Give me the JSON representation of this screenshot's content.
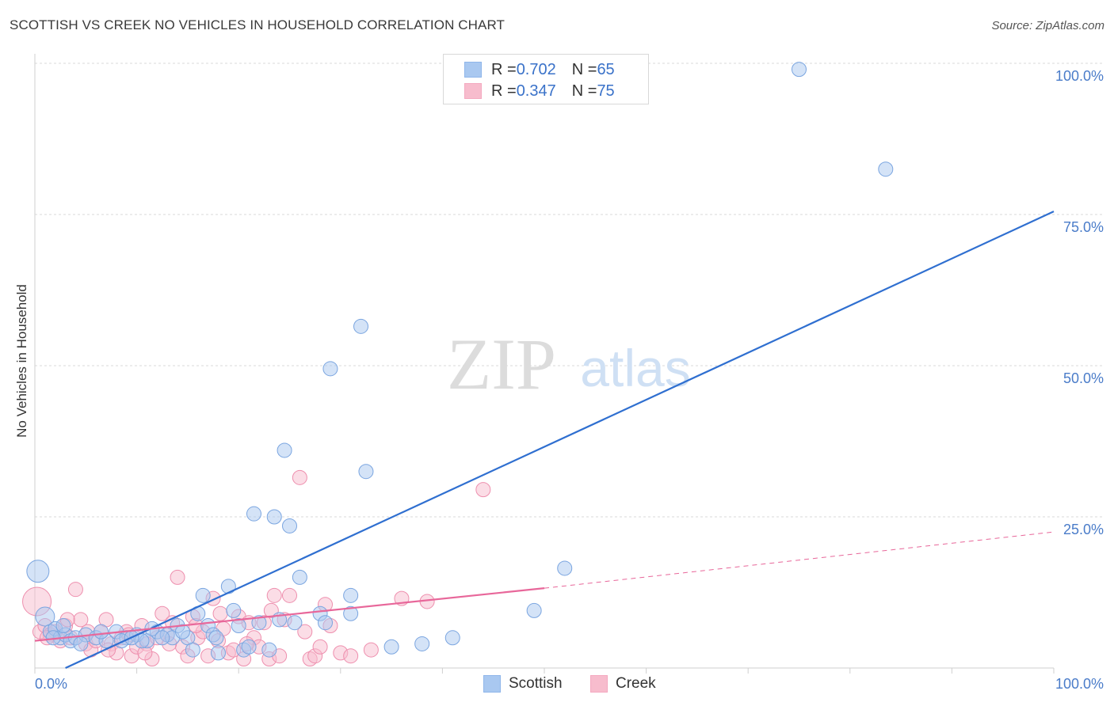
{
  "header": {
    "title": "SCOTTISH VS CREEK NO VEHICLES IN HOUSEHOLD CORRELATION CHART",
    "source": "Source: ZipAtlas.com"
  },
  "watermark": {
    "zip": "ZIP",
    "atlas": "atlas"
  },
  "legend": {
    "rows": [
      {
        "r_label": "R = ",
        "r_value": "0.702",
        "n_label": "N = ",
        "n_value": "65",
        "color": "#8fb6ea"
      },
      {
        "r_label": "R = ",
        "r_value": "0.347",
        "n_label": "N = ",
        "n_value": "75",
        "color": "#f4a9c0"
      }
    ]
  },
  "bottom_legend": [
    {
      "label": "Scottish",
      "color": "#8fb6ea"
    },
    {
      "label": "Creek",
      "color": "#f4a9c0"
    }
  ],
  "colors": {
    "scottish_fill": "#a9c8f0",
    "scottish_stroke": "#7aa5e0",
    "scottish_line": "#2f6fd0",
    "creek_fill": "#f7bccd",
    "creek_stroke": "#ee8fae",
    "creek_line": "#e8679a",
    "axis_text": "#4a7cc9",
    "grid": "#d9d9d9"
  },
  "chart_data": {
    "type": "scatter",
    "title": "SCOTTISH VS CREEK NO VEHICLES IN HOUSEHOLD CORRELATION CHART",
    "xlabel": "",
    "ylabel": "No Vehicles in Household",
    "xlim": [
      0,
      100
    ],
    "ylim": [
      0,
      100
    ],
    "x_tick_labels": [
      {
        "value": 0,
        "label": "0.0%"
      },
      {
        "value": 100,
        "label": "100.0%"
      }
    ],
    "y_tick_labels": [
      {
        "value": 25,
        "label": "25.0%"
      },
      {
        "value": 50,
        "label": "50.0%"
      },
      {
        "value": 75,
        "label": "75.0%"
      },
      {
        "value": 100,
        "label": "100.0%"
      }
    ],
    "series": [
      {
        "name": "Scottish",
        "R": 0.702,
        "N": 65,
        "trend": {
          "x0": 3,
          "y0": 0,
          "x1": 100,
          "y1": 75.5
        },
        "points": [
          [
            0.3,
            16,
            14
          ],
          [
            1,
            8.5,
            12
          ],
          [
            1.5,
            6,
            9
          ],
          [
            2,
            6.5,
            9
          ],
          [
            2.5,
            5,
            9
          ],
          [
            3,
            5.5,
            9
          ],
          [
            3.5,
            4.5,
            9
          ],
          [
            4,
            5,
            9
          ],
          [
            5,
            5.5,
            9
          ],
          [
            6,
            5,
            9
          ],
          [
            7,
            4.5,
            9
          ],
          [
            8,
            6,
            9
          ],
          [
            9,
            5,
            9
          ],
          [
            10,
            5.5,
            9
          ],
          [
            11,
            4.5,
            9
          ],
          [
            12,
            6,
            9
          ],
          [
            13,
            5.5,
            9
          ],
          [
            14,
            7,
            9
          ],
          [
            15,
            5,
            9
          ],
          [
            15.5,
            3,
            9
          ],
          [
            16,
            9,
            9
          ],
          [
            16.5,
            12,
            9
          ],
          [
            17,
            7,
            9
          ],
          [
            17.5,
            5.5,
            9
          ],
          [
            18,
            2.5,
            9
          ],
          [
            19,
            13.5,
            9
          ],
          [
            19.5,
            9.5,
            9
          ],
          [
            20,
            7,
            9
          ],
          [
            20.5,
            3,
            9
          ],
          [
            21,
            3.5,
            9
          ],
          [
            21.5,
            25.5,
            9
          ],
          [
            22,
            7.5,
            9
          ],
          [
            23,
            3,
            9
          ],
          [
            23.5,
            25,
            9
          ],
          [
            24,
            8,
            9
          ],
          [
            24.5,
            36,
            9
          ],
          [
            25,
            23.5,
            9
          ],
          [
            25.5,
            7.5,
            9
          ],
          [
            26,
            15,
            9
          ],
          [
            28,
            9,
            9
          ],
          [
            28.5,
            7.5,
            9
          ],
          [
            29,
            49.5,
            9
          ],
          [
            31,
            12,
            9
          ],
          [
            31,
            9,
            9
          ],
          [
            32,
            56.5,
            9
          ],
          [
            32.5,
            32.5,
            9
          ],
          [
            35,
            3.5,
            9
          ],
          [
            38,
            4,
            9
          ],
          [
            41,
            5,
            9
          ],
          [
            49,
            9.5,
            9
          ],
          [
            52,
            16.5,
            9
          ],
          [
            75,
            99,
            9
          ],
          [
            83.5,
            82.5,
            9
          ],
          [
            11.5,
            6.5,
            9
          ],
          [
            13.5,
            5,
            9
          ],
          [
            4.5,
            4,
            9
          ],
          [
            6.5,
            6,
            9
          ],
          [
            8.5,
            4.5,
            9
          ],
          [
            2.8,
            7,
            9
          ],
          [
            10.5,
            4.5,
            9
          ],
          [
            12.5,
            5,
            9
          ],
          [
            14.5,
            6,
            9
          ],
          [
            17.8,
            5,
            9
          ],
          [
            1.8,
            5,
            9
          ],
          [
            9.5,
            5,
            9
          ]
        ]
      },
      {
        "name": "Creek",
        "R": 0.347,
        "N": 75,
        "trend": {
          "x0": 0,
          "y0": 4.5,
          "x1": 50,
          "y1": 13.2
        },
        "trend_dashed": {
          "x0": 50,
          "y0": 13.2,
          "x1": 100,
          "y1": 22.5
        },
        "points": [
          [
            0.2,
            11,
            18
          ],
          [
            0.5,
            6,
            9
          ],
          [
            1,
            7,
            9
          ],
          [
            1.5,
            5.5,
            9
          ],
          [
            2,
            6,
            9
          ],
          [
            2.5,
            4.5,
            9
          ],
          [
            3,
            7,
            9
          ],
          [
            3.5,
            5,
            9
          ],
          [
            4,
            13,
            9
          ],
          [
            4.5,
            8,
            9
          ],
          [
            5,
            4,
            9
          ],
          [
            5.5,
            3,
            9
          ],
          [
            6,
            4.5,
            9
          ],
          [
            6.5,
            6,
            9
          ],
          [
            7,
            8,
            9
          ],
          [
            7.5,
            4,
            9
          ],
          [
            8,
            2.5,
            9
          ],
          [
            8.5,
            5,
            9
          ],
          [
            9,
            6,
            9
          ],
          [
            9.5,
            2,
            9
          ],
          [
            10,
            3.5,
            9
          ],
          [
            10.5,
            7,
            9
          ],
          [
            11,
            4,
            9
          ],
          [
            11.5,
            1.5,
            9
          ],
          [
            12,
            5,
            9
          ],
          [
            12.5,
            9,
            9
          ],
          [
            13,
            5.5,
            9
          ],
          [
            13.5,
            7.5,
            9
          ],
          [
            14,
            15,
            9
          ],
          [
            14.5,
            3.5,
            9
          ],
          [
            15,
            2,
            9
          ],
          [
            15.5,
            8.5,
            9
          ],
          [
            16,
            5,
            9
          ],
          [
            16.5,
            6,
            9
          ],
          [
            17,
            2,
            9
          ],
          [
            17.5,
            11.5,
            9
          ],
          [
            18,
            4.5,
            9
          ],
          [
            18.5,
            6.5,
            9
          ],
          [
            19,
            2.5,
            9
          ],
          [
            19.5,
            3,
            9
          ],
          [
            20,
            8.5,
            9
          ],
          [
            20.5,
            1.5,
            9
          ],
          [
            21,
            7.5,
            9
          ],
          [
            21.5,
            5,
            9
          ],
          [
            22,
            3.5,
            9
          ],
          [
            22.5,
            7.5,
            9
          ],
          [
            23,
            1.5,
            9
          ],
          [
            23.5,
            12,
            9
          ],
          [
            24,
            2,
            9
          ],
          [
            24.5,
            8,
            9
          ],
          [
            25,
            12,
            9
          ],
          [
            26,
            31.5,
            9
          ],
          [
            27,
            1.5,
            9
          ],
          [
            27.5,
            2,
            9
          ],
          [
            28,
            3.5,
            9
          ],
          [
            29,
            7,
            9
          ],
          [
            30,
            2.5,
            9
          ],
          [
            31,
            2,
            9
          ],
          [
            36,
            11.5,
            9
          ],
          [
            38.5,
            11,
            9
          ],
          [
            44,
            29.5,
            9
          ],
          [
            1.2,
            5,
            9
          ],
          [
            3.2,
            8,
            9
          ],
          [
            5.2,
            6,
            9
          ],
          [
            7.2,
            3,
            9
          ],
          [
            9.2,
            5.5,
            9
          ],
          [
            10.8,
            2.5,
            9
          ],
          [
            13.2,
            4,
            9
          ],
          [
            15.8,
            7,
            9
          ],
          [
            18.2,
            9,
            9
          ],
          [
            20.8,
            4,
            9
          ],
          [
            23.2,
            9.5,
            9
          ],
          [
            26.5,
            6,
            9
          ],
          [
            28.5,
            10.5,
            9
          ],
          [
            33,
            3,
            9
          ]
        ]
      }
    ]
  }
}
